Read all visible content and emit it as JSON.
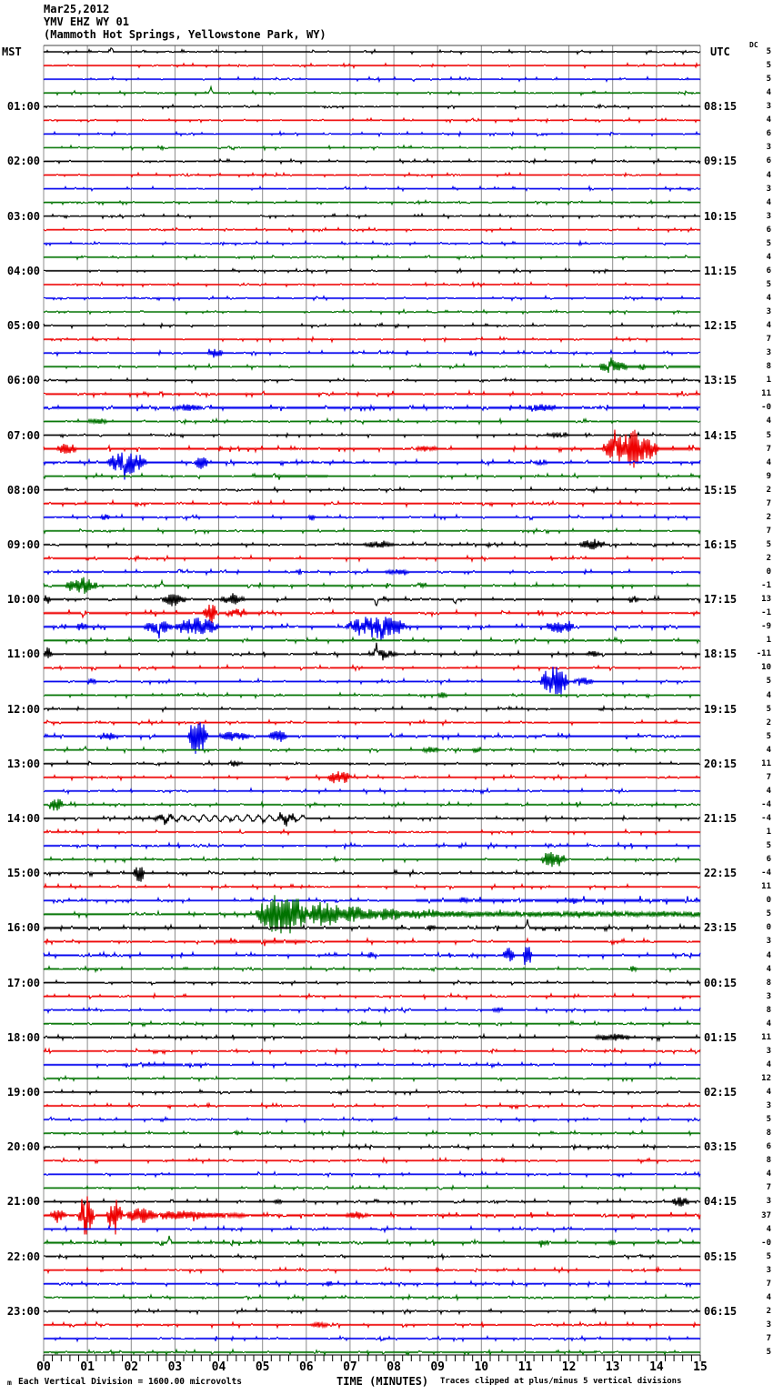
{
  "header": {
    "date": "Mar25,2012",
    "station": "YMV EHZ WY 01",
    "location": "(Mammoth Hot Springs, Yellowstone Park, WY)"
  },
  "axes": {
    "left_tz": "MST",
    "right_tz": "UTC",
    "dc_label": "DC"
  },
  "footer": {
    "scale_note": "Each Vertical Division = 1600.00 microvolts",
    "xaxis_title": "TIME (MINUTES)",
    "clip_note": "Traces clipped at plus/minus 5 vertical divisions",
    "logo_glyph": "m"
  },
  "chart_data": {
    "type": "line",
    "title": "YMV EHZ WY 01 helicorder record Mar25,2012",
    "x_unit": "minutes",
    "x_range": [
      0,
      15
    ],
    "minutes_per_line": 15,
    "x_ticks": [
      "00",
      "01",
      "02",
      "03",
      "04",
      "05",
      "06",
      "07",
      "08",
      "09",
      "10",
      "11",
      "12",
      "13",
      "14",
      "15"
    ],
    "grid_color": "#8c8c8c",
    "frame_color": "#444444",
    "trace_colors": {
      "black": "#000000",
      "red": "#ee0000",
      "blue": "#0000ee",
      "green": "#007300"
    },
    "color_cycle": [
      "black",
      "red",
      "blue",
      "green"
    ],
    "left_labels": [
      "01:00",
      "02:00",
      "03:00",
      "04:00",
      "05:00",
      "06:00",
      "07:00",
      "08:00",
      "09:00",
      "10:00",
      "11:00",
      "12:00",
      "13:00",
      "14:00",
      "15:00",
      "16:00",
      "17:00",
      "18:00",
      "19:00",
      "20:00",
      "21:00",
      "22:00",
      "23:00"
    ],
    "right_labels": [
      "08:15",
      "09:15",
      "10:15",
      "11:15",
      "12:15",
      "13:15",
      "14:15",
      "15:15",
      "16:15",
      "17:15",
      "18:15",
      "19:15",
      "20:15",
      "21:15",
      "22:15",
      "23:15",
      "00:15",
      "01:15",
      "02:15",
      "03:15",
      "04:15",
      "05:15",
      "06:15"
    ],
    "rows": [
      {
        "dc": "5",
        "n": 0.85,
        "ev": [
          [
            "s",
            1.55,
            6,
            1
          ]
        ]
      },
      {
        "dc": "5",
        "n": 0.85
      },
      {
        "dc": "5",
        "n": 0.85
      },
      {
        "dc": "4",
        "n": 0.85,
        "ev": [
          [
            "s",
            3.82,
            7,
            1
          ]
        ]
      },
      {
        "dc": "3",
        "n": 0.85
      },
      {
        "dc": "4",
        "n": 0.85
      },
      {
        "dc": "6",
        "n": 0.85
      },
      {
        "dc": "3",
        "n": 0.85
      },
      {
        "dc": "6",
        "n": 0.85
      },
      {
        "dc": "4",
        "n": 0.85
      },
      {
        "dc": "3",
        "n": 0.85
      },
      {
        "dc": "4",
        "n": 0.85
      },
      {
        "dc": "3",
        "n": 0.85
      },
      {
        "dc": "6",
        "n": 0.85
      },
      {
        "dc": "5",
        "n": 0.85
      },
      {
        "dc": "4",
        "n": 0.85
      },
      {
        "dc": "6",
        "n": 0.85
      },
      {
        "dc": "5",
        "n": 0.85
      },
      {
        "dc": "4",
        "n": 0.85
      },
      {
        "dc": "3",
        "n": 0.85
      },
      {
        "dc": "4",
        "n": 0.9
      },
      {
        "dc": "7",
        "n": 0.95
      },
      {
        "dc": "3",
        "n": 1,
        "ev": [
          [
            "b",
            3.75,
            4.1,
            5
          ]
        ]
      },
      {
        "dc": "8",
        "n": 1,
        "ev": [
          [
            "b",
            12.7,
            13.35,
            7
          ],
          [
            "s",
            12.96,
            9,
            1
          ],
          [
            "z",
            13.35,
            15,
            1.6
          ],
          [
            "b",
            13.6,
            13.75,
            3
          ]
        ]
      },
      {
        "dc": "1",
        "n": 0.9
      },
      {
        "dc": "11",
        "n": 1.25
      },
      {
        "dc": "-0",
        "n": 1.45,
        "ev": [
          [
            "b",
            3.0,
            3.6,
            3
          ],
          [
            "b",
            11.0,
            11.7,
            3
          ]
        ]
      },
      {
        "dc": "4",
        "n": 1,
        "ev": [
          [
            "b",
            1.0,
            1.45,
            3
          ]
        ]
      },
      {
        "dc": "5",
        "n": 0.95,
        "ev": [
          [
            "b",
            11.5,
            12.0,
            2
          ]
        ]
      },
      {
        "dc": "7",
        "n": 1.25,
        "ev": [
          [
            "b",
            0.3,
            0.75,
            6
          ],
          [
            "b",
            12.75,
            14.05,
            18
          ],
          [
            "s",
            13.05,
            22,
            1
          ],
          [
            "s",
            13.5,
            16,
            0
          ],
          [
            "b",
            8.5,
            9.0,
            2.5
          ],
          [
            "z",
            14.05,
            15,
            1.5
          ]
        ]
      },
      {
        "dc": "4",
        "n": 1.2,
        "ev": [
          [
            "b",
            1.45,
            2.35,
            12
          ],
          [
            "s",
            1.85,
            16,
            -1
          ],
          [
            "b",
            3.45,
            3.75,
            7
          ],
          [
            "b",
            11.2,
            11.5,
            3
          ]
        ]
      },
      {
        "dc": "9",
        "n": 1,
        "ev": [
          [
            "z",
            4.8,
            6.5,
            1.6
          ]
        ]
      },
      {
        "dc": "2",
        "n": 0.95
      },
      {
        "dc": "7",
        "n": 1.1
      },
      {
        "dc": "2",
        "n": 1,
        "ev": [
          [
            "b",
            1.3,
            1.5,
            3
          ],
          [
            "b",
            6.05,
            6.2,
            3
          ]
        ]
      },
      {
        "dc": "7",
        "n": 0.95
      },
      {
        "dc": "5",
        "n": 1,
        "ev": [
          [
            "b",
            7.3,
            8.0,
            3
          ],
          [
            "b",
            12.25,
            12.8,
            6
          ]
        ]
      },
      {
        "dc": "2",
        "n": 1.05
      },
      {
        "dc": "0",
        "n": 1,
        "ev": [
          [
            "s",
            3.1,
            4,
            1
          ],
          [
            "s",
            5.85,
            4,
            0
          ],
          [
            "b",
            7.8,
            8.35,
            2.5
          ]
        ]
      },
      {
        "dc": "-1",
        "n": 1.25,
        "ev": [
          [
            "b",
            0.5,
            1.25,
            9
          ],
          [
            "s",
            2.7,
            5,
            1
          ],
          [
            "b",
            8.5,
            8.7,
            3
          ]
        ]
      },
      {
        "dc": "13",
        "n": 1.2,
        "ev": [
          [
            "b",
            0,
            0.15,
            5
          ],
          [
            "b",
            2.7,
            3.25,
            7
          ],
          [
            "b",
            4.05,
            4.6,
            5
          ],
          [
            "s",
            7.6,
            9,
            -1
          ],
          [
            "s",
            9.4,
            6,
            -1
          ],
          [
            "b",
            13.35,
            13.6,
            4
          ]
        ]
      },
      {
        "dc": "-1",
        "n": 1.15,
        "ev": [
          [
            "s",
            0.9,
            5,
            -1
          ],
          [
            "b",
            3.65,
            3.95,
            12
          ],
          [
            "b",
            4.15,
            4.65,
            4
          ],
          [
            "z",
            0,
            5,
            1.25
          ]
        ]
      },
      {
        "dc": "-9",
        "n": 1.35,
        "ev": [
          [
            "b",
            0.75,
            1.0,
            4
          ],
          [
            "b",
            2.3,
            2.95,
            7
          ],
          [
            "s",
            2.62,
            12,
            -1
          ],
          [
            "b",
            3.0,
            4.0,
            10
          ],
          [
            "b",
            6.9,
            8.3,
            12
          ],
          [
            "s",
            7.72,
            17,
            -1
          ],
          [
            "b",
            11.5,
            12.15,
            6
          ]
        ]
      },
      {
        "dc": "1",
        "n": 1.1
      },
      {
        "dc": "-11",
        "n": 1.15,
        "ev": [
          [
            "b",
            0,
            0.2,
            5
          ],
          [
            "b",
            7.45,
            8.1,
            4
          ],
          [
            "s",
            7.6,
            12,
            1
          ],
          [
            "b",
            12.4,
            12.7,
            2.5
          ]
        ]
      },
      {
        "dc": "10",
        "n": 1
      },
      {
        "dc": "5",
        "n": 1,
        "ev": [
          [
            "b",
            1.0,
            1.2,
            3
          ],
          [
            "b",
            11.35,
            12.0,
            17
          ],
          [
            "b",
            12.1,
            12.55,
            4
          ]
        ]
      },
      {
        "dc": "4",
        "n": 1,
        "ev": [
          [
            "b",
            9.0,
            9.2,
            3
          ]
        ]
      },
      {
        "dc": "5",
        "n": 0.95
      },
      {
        "dc": "2",
        "n": 1
      },
      {
        "dc": "5",
        "n": 1.25,
        "ev": [
          [
            "b",
            1.35,
            1.65,
            4
          ],
          [
            "b",
            3.3,
            3.75,
            20
          ],
          [
            "b",
            4.05,
            4.7,
            5
          ],
          [
            "b",
            5.15,
            5.55,
            6
          ]
        ]
      },
      {
        "dc": "4",
        "n": 1,
        "ev": [
          [
            "s",
            0.95,
            4,
            1
          ],
          [
            "b",
            8.65,
            9.05,
            3
          ],
          [
            "b",
            9.8,
            10.0,
            3
          ]
        ]
      },
      {
        "dc": "11",
        "n": 1,
        "ev": [
          [
            "s",
            1.05,
            3,
            1
          ],
          [
            "b",
            4.2,
            4.5,
            3
          ]
        ]
      },
      {
        "dc": "7",
        "n": 1,
        "ev": [
          [
            "b",
            6.5,
            7.0,
            8
          ]
        ]
      },
      {
        "dc": "4",
        "n": 1
      },
      {
        "dc": "-4",
        "n": 1,
        "ev": [
          [
            "b",
            0.1,
            0.45,
            9
          ]
        ]
      },
      {
        "dc": "-4",
        "n": 1,
        "ev": [
          [
            "b",
            2.5,
            2.95,
            4
          ],
          [
            "w",
            2.6,
            6.0,
            3,
            4
          ],
          [
            "b",
            5.35,
            5.8,
            6
          ]
        ]
      },
      {
        "dc": "1",
        "n": 1
      },
      {
        "dc": "5",
        "n": 1.05
      },
      {
        "dc": "6",
        "n": 1,
        "ev": [
          [
            "b",
            11.35,
            11.95,
            8
          ]
        ]
      },
      {
        "dc": "-4",
        "n": 1.1,
        "ev": [
          [
            "b",
            2.05,
            2.3,
            10
          ]
        ]
      },
      {
        "dc": "11",
        "n": 1
      },
      {
        "dc": "0",
        "n": 1,
        "ev": [
          [
            "z",
            8.5,
            15,
            1.8
          ],
          [
            "b",
            9.5,
            9.7,
            3
          ],
          [
            "b",
            12.0,
            12.2,
            3
          ]
        ]
      },
      {
        "dc": "5",
        "n": 1.2,
        "ev": [
          [
            "b",
            4.85,
            6.05,
            23
          ],
          [
            "d",
            6.05,
            15,
            14,
            0.55,
            2
          ]
        ]
      },
      {
        "dc": "0",
        "n": 1.35,
        "ev": [
          [
            "s",
            11.05,
            10,
            1
          ],
          [
            "b",
            8.75,
            8.95,
            3
          ]
        ]
      },
      {
        "dc": "3",
        "n": 1.1,
        "ev": [
          [
            "z",
            3.9,
            6.0,
            1.8
          ]
        ]
      },
      {
        "dc": "4",
        "n": 1.15,
        "ev": [
          [
            "b",
            7.4,
            7.55,
            3
          ],
          [
            "b",
            10.5,
            10.75,
            8
          ],
          [
            "b",
            10.95,
            11.15,
            12
          ]
        ]
      },
      {
        "dc": "4",
        "n": 1,
        "ev": [
          [
            "b",
            13.35,
            13.55,
            3
          ]
        ]
      },
      {
        "dc": "8",
        "n": 0.95
      },
      {
        "dc": "3",
        "n": 1
      },
      {
        "dc": "8",
        "n": 1,
        "ev": [
          [
            "b",
            10.25,
            10.45,
            3
          ]
        ]
      },
      {
        "dc": "4",
        "n": 1
      },
      {
        "dc": "11",
        "n": 1.15,
        "ev": [
          [
            "b",
            12.6,
            13.4,
            3.5
          ]
        ]
      },
      {
        "dc": "3",
        "n": 1
      },
      {
        "dc": "4",
        "n": 1.1,
        "ev": [
          [
            "z",
            1.8,
            3.6,
            1.5
          ]
        ]
      },
      {
        "dc": "12",
        "n": 1
      },
      {
        "dc": "4",
        "n": 0.95
      },
      {
        "dc": "3",
        "n": 0.95
      },
      {
        "dc": "5",
        "n": 0.95
      },
      {
        "dc": "8",
        "n": 0.95
      },
      {
        "dc": "6",
        "n": 0.95
      },
      {
        "dc": "8",
        "n": 0.95
      },
      {
        "dc": "4",
        "n": 0.95
      },
      {
        "dc": "7",
        "n": 0.95
      },
      {
        "dc": "3",
        "n": 1,
        "ev": [
          [
            "b",
            5.25,
            5.45,
            2.5
          ],
          [
            "b",
            14.35,
            14.75,
            5
          ]
        ]
      },
      {
        "dc": "37",
        "n": 1.5,
        "ev": [
          [
            "b",
            0.15,
            0.5,
            6
          ],
          [
            "b",
            0.8,
            1.15,
            25
          ],
          [
            "s",
            0.95,
            24,
            -1
          ],
          [
            "b",
            1.45,
            1.8,
            22
          ],
          [
            "b",
            1.9,
            2.6,
            8
          ],
          [
            "d",
            2.6,
            4.6,
            5,
            0.8,
            0
          ],
          [
            "b",
            6.9,
            7.4,
            3.5
          ]
        ]
      },
      {
        "dc": "4",
        "n": 1.05
      },
      {
        "dc": "-0",
        "n": 1.3,
        "ev": [
          [
            "s",
            2.87,
            8,
            1
          ],
          [
            "b",
            11.3,
            11.55,
            2.5
          ],
          [
            "b",
            12.9,
            13.1,
            2.5
          ],
          [
            "s",
            14.55,
            4,
            1
          ]
        ]
      },
      {
        "dc": "5",
        "n": 1
      },
      {
        "dc": "3",
        "n": 1
      },
      {
        "dc": "7",
        "n": 1,
        "ev": [
          [
            "b",
            6.45,
            6.6,
            3
          ]
        ]
      },
      {
        "dc": "4",
        "n": 1
      },
      {
        "dc": "2",
        "n": 1
      },
      {
        "dc": "3",
        "n": 1.05,
        "ev": [
          [
            "b",
            6.1,
            6.5,
            2.5
          ]
        ]
      },
      {
        "dc": "7",
        "n": 1
      },
      {
        "dc": "5",
        "n": 1
      }
    ]
  }
}
